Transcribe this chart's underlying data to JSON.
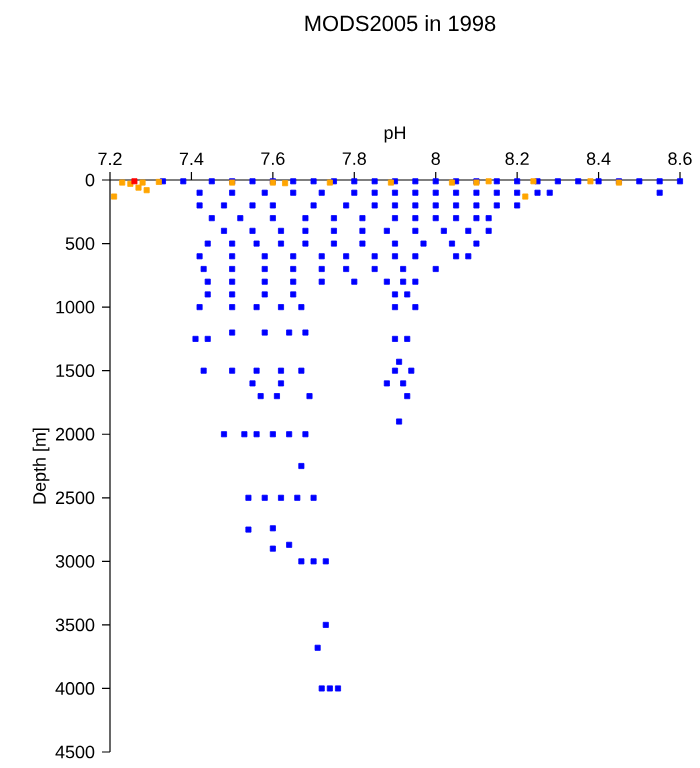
{
  "chart_data": {
    "type": "scatter",
    "title": "MODS2005 in 1998",
    "xlabel": "pH",
    "ylabel": "Depth [m]",
    "xlim": [
      7.2,
      8.6
    ],
    "ylim": [
      4500,
      0
    ],
    "xticks": [
      7.2,
      7.4,
      7.6,
      7.8,
      8,
      8.2,
      8.4,
      8.6
    ],
    "yticks": [
      0,
      500,
      1000,
      1500,
      2000,
      2500,
      3000,
      3500,
      4000,
      4500
    ],
    "marker": "square",
    "series": [
      {
        "color": "#0000ff",
        "x": [
          7.33,
          7.38,
          7.45,
          7.5,
          7.55,
          7.6,
          7.65,
          7.7,
          7.75,
          7.8,
          7.85,
          7.9,
          7.95,
          8.0,
          8.05,
          8.1,
          8.15,
          8.2,
          8.25,
          8.3,
          8.35,
          8.4,
          8.45,
          8.5,
          8.55,
          8.6,
          7.42,
          7.5,
          7.58,
          7.65,
          7.72,
          7.8,
          7.85,
          7.9,
          7.95,
          8.0,
          8.05,
          8.1,
          8.15,
          8.2,
          8.25,
          8.28,
          8.55,
          7.42,
          7.48,
          7.55,
          7.6,
          7.7,
          7.78,
          7.85,
          7.9,
          7.95,
          8.0,
          8.05,
          8.1,
          8.15,
          8.2,
          7.45,
          7.52,
          7.6,
          7.68,
          7.75,
          7.82,
          7.9,
          7.95,
          8.0,
          8.05,
          8.1,
          8.13,
          7.48,
          7.55,
          7.62,
          7.68,
          7.75,
          7.82,
          7.88,
          7.95,
          8.02,
          8.08,
          8.13,
          7.44,
          7.5,
          7.56,
          7.62,
          7.68,
          7.75,
          7.82,
          7.9,
          7.97,
          8.04,
          8.1,
          7.42,
          7.5,
          7.58,
          7.65,
          7.72,
          7.78,
          7.85,
          7.9,
          7.95,
          8.05,
          8.08,
          7.43,
          7.5,
          7.58,
          7.65,
          7.72,
          7.78,
          7.85,
          7.92,
          8.0,
          7.44,
          7.5,
          7.58,
          7.65,
          7.72,
          7.8,
          7.88,
          7.92,
          7.95,
          7.44,
          7.5,
          7.58,
          7.65,
          7.9,
          7.93,
          7.42,
          7.5,
          7.56,
          7.62,
          7.67,
          7.9,
          7.95,
          7.5,
          7.58,
          7.64,
          7.68,
          7.41,
          7.44,
          7.9,
          7.93,
          7.43,
          7.5,
          7.56,
          7.62,
          7.67,
          7.9,
          7.94,
          7.91,
          7.55,
          7.62,
          7.88,
          7.92,
          7.57,
          7.61,
          7.69,
          7.93,
          7.91,
          7.48,
          7.53,
          7.56,
          7.6,
          7.64,
          7.68,
          7.67,
          7.54,
          7.58,
          7.62,
          7.66,
          7.7,
          7.54,
          7.6,
          7.6,
          7.64,
          7.67,
          7.7,
          7.73,
          7.73,
          7.71,
          7.72,
          7.74,
          7.76
        ],
        "values": [
          10,
          10,
          10,
          10,
          10,
          10,
          10,
          10,
          10,
          10,
          10,
          10,
          10,
          10,
          10,
          10,
          10,
          10,
          10,
          10,
          10,
          10,
          10,
          10,
          10,
          10,
          100,
          100,
          100,
          100,
          100,
          100,
          100,
          100,
          100,
          100,
          100,
          100,
          100,
          100,
          100,
          100,
          100,
          200,
          200,
          200,
          200,
          200,
          200,
          200,
          200,
          200,
          200,
          200,
          200,
          200,
          200,
          300,
          300,
          300,
          300,
          300,
          300,
          300,
          300,
          300,
          300,
          300,
          300,
          400,
          400,
          400,
          400,
          400,
          400,
          400,
          400,
          400,
          400,
          400,
          500,
          500,
          500,
          500,
          500,
          500,
          500,
          500,
          500,
          500,
          500,
          600,
          600,
          600,
          600,
          600,
          600,
          600,
          600,
          600,
          600,
          600,
          700,
          700,
          700,
          700,
          700,
          700,
          700,
          700,
          700,
          800,
          800,
          800,
          800,
          800,
          800,
          800,
          800,
          800,
          900,
          900,
          900,
          900,
          900,
          900,
          1000,
          1000,
          1000,
          1000,
          1000,
          1000,
          1000,
          1200,
          1200,
          1200,
          1200,
          1250,
          1250,
          1250,
          1250,
          1500,
          1500,
          1500,
          1500,
          1500,
          1500,
          1500,
          1430,
          1600,
          1600,
          1600,
          1600,
          1700,
          1700,
          1700,
          1700,
          1900,
          2000,
          2000,
          2000,
          2000,
          2000,
          2000,
          2250,
          2500,
          2500,
          2500,
          2500,
          2500,
          2750,
          2740,
          2900,
          2870,
          3000,
          3000,
          3000,
          3500,
          3680,
          4000,
          4000,
          4000
        ]
      },
      {
        "color": "#ffa500",
        "x": [
          7.21,
          7.23,
          7.25,
          7.27,
          7.28,
          7.29,
          7.32,
          7.5,
          7.6,
          7.63,
          7.74,
          7.89,
          8.04,
          8.1,
          8.13,
          8.24,
          8.22,
          8.38,
          8.45
        ],
        "values": [
          130,
          20,
          30,
          60,
          20,
          80,
          15,
          20,
          20,
          25,
          20,
          20,
          20,
          20,
          10,
          10,
          130,
          10,
          20
        ]
      },
      {
        "color": "#ff0000",
        "x": [
          7.26
        ],
        "values": [
          10
        ]
      }
    ]
  }
}
